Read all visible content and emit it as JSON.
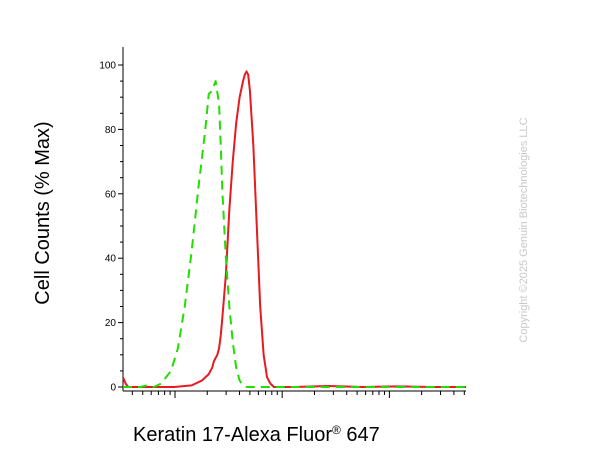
{
  "chart_data": {
    "type": "line",
    "title": "",
    "xlabel_main": "Keratin 17-Alexa Fluor",
    "xlabel_reg": "®",
    "xlabel_tail": " 647",
    "ylabel": "Cell Counts (% Max)",
    "x_scale": "log",
    "x_tick_labels": [],
    "ylim": [
      0,
      100
    ],
    "y_ticks": [
      0,
      20,
      40,
      60,
      80,
      100
    ],
    "y_tick_labels": [
      "0",
      "20",
      "40",
      "60",
      "80",
      "100"
    ],
    "grid": false,
    "legend": "none",
    "x_domain": [
      0,
      1
    ],
    "series": [
      {
        "color": "#e8191f",
        "style": "solid",
        "x": [
          0.0,
          0.008,
          0.015,
          0.025,
          0.04,
          0.15,
          0.2,
          0.23,
          0.24,
          0.25,
          0.26,
          0.265,
          0.27,
          0.275,
          0.28,
          0.285,
          0.29,
          0.3,
          0.31,
          0.32,
          0.33,
          0.34,
          0.35,
          0.355,
          0.36,
          0.365,
          0.37,
          0.38,
          0.39,
          0.4,
          0.41,
          0.42,
          0.43,
          0.44,
          0.45,
          0.5,
          0.6,
          0.7,
          0.8,
          0.9,
          1.0
        ],
        "y": [
          3,
          1,
          0,
          0,
          0,
          0,
          0.5,
          2,
          3,
          4,
          6,
          8,
          9,
          10,
          12,
          16,
          22,
          35,
          55,
          70,
          82,
          90,
          95,
          97,
          98,
          97,
          92,
          75,
          50,
          25,
          10,
          3,
          1,
          0,
          0,
          0,
          0.3,
          0,
          0.2,
          0,
          0
        ]
      },
      {
        "color": "#22dd00",
        "style": "dashed",
        "x": [
          0.0,
          0.05,
          0.07,
          0.09,
          0.11,
          0.14,
          0.16,
          0.18,
          0.2,
          0.22,
          0.24,
          0.25,
          0.26,
          0.27,
          0.28,
          0.285,
          0.29,
          0.3,
          0.31,
          0.32,
          0.33,
          0.34,
          0.35,
          0.36,
          0.38,
          0.4,
          0.45,
          0.6,
          1.0
        ],
        "y": [
          0,
          0,
          0.5,
          0,
          1,
          5,
          12,
          25,
          42,
          62,
          80,
          91,
          92,
          95,
          88,
          75,
          60,
          40,
          25,
          14,
          6,
          2,
          0.5,
          0,
          0,
          0,
          0,
          0,
          0
        ]
      }
    ]
  },
  "watermark": "Copyright ©2025 Genuin Biotechnologies LLC"
}
